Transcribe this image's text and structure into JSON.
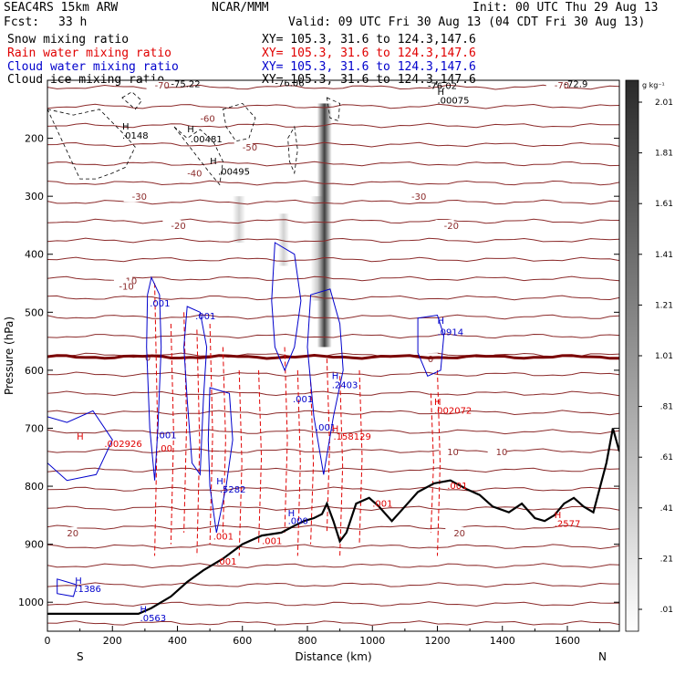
{
  "header": {
    "model": "SEAC4RS 15km ARW",
    "org": "NCAR/MMM",
    "init": "Init: 00 UTC Thu 29 Aug 13",
    "fcst_label": "Fcst:",
    "fcst_value": "33 h",
    "valid": "Valid: 09 UTC Fri 30 Aug 13 (04 CDT Fri 30 Aug 13)"
  },
  "fields": [
    {
      "name": "Snow mixing ratio",
      "xy": "XY= 105.3, 31.6 to 124.3,147.6",
      "color": "#000000"
    },
    {
      "name": "Rain water mixing ratio",
      "xy": "XY= 105.3, 31.6 to 124.3,147.6",
      "color": "#e00000"
    },
    {
      "name": "Cloud water mixing ratio",
      "xy": "XY= 105.3, 31.6 to 124.3,147.6",
      "color": "#0000cc"
    },
    {
      "name": "Cloud ice mixing ratio",
      "xy": "XY= 105.3, 31.6 to 124.3,147.6",
      "color": "#000000"
    }
  ],
  "chart_data": {
    "type": "cross-section",
    "xlabel": "Distance (km)",
    "ylabel": "Pressure (hPa)",
    "xlim": [
      0,
      1760
    ],
    "ylim": [
      1050,
      100
    ],
    "x_ticks": [
      0,
      200,
      400,
      600,
      800,
      1000,
      1200,
      1400,
      1600
    ],
    "y_ticks": [
      200,
      300,
      400,
      500,
      600,
      700,
      800,
      900,
      1000
    ],
    "x_end_labels": {
      "left": "S",
      "right": "N"
    },
    "colorbar": {
      "unit": "g kg⁻¹",
      "ticks": [
        ".01",
        ".21",
        ".41",
        ".61",
        ".81",
        "1.01",
        "1.21",
        "1.41",
        "1.61",
        "1.81",
        "2.01"
      ]
    },
    "temperature_isotherms": [
      {
        "label": "-70",
        "p": 108
      },
      {
        "label": "-60",
        "p": 165
      },
      {
        "label": "-50",
        "p": 215
      },
      {
        "label": "-40",
        "p": 260
      },
      {
        "label": "-30",
        "p": 300
      },
      {
        "label": "-20",
        "p": 350
      },
      {
        "label": "-10",
        "p": 445
      },
      {
        "label": "0",
        "p": 577
      },
      {
        "label": "10",
        "p": 740
      },
      {
        "label": "20",
        "p": 880
      }
    ],
    "ice_labels": [
      {
        "text": "-75.22",
        "x": 380,
        "p": 112
      },
      {
        "text": "-76.06",
        "x": 700,
        "p": 110
      },
      {
        "text": "-76.02",
        "x": 1170,
        "p": 115
      },
      {
        "text": "-72.9",
        "x": 1590,
        "p": 112
      },
      {
        "text": ".00075",
        "x": 1200,
        "p": 140
      },
      {
        "text": ".0148",
        "x": 230,
        "p": 201
      },
      {
        "text": ".00481",
        "x": 440,
        "p": 207
      },
      {
        "text": ".00495",
        "x": 525,
        "p": 263
      }
    ],
    "cloud_water_labels": [
      {
        "text": ".001",
        "x": 315,
        "p": 490
      },
      {
        "text": ".001",
        "x": 455,
        "p": 512
      },
      {
        "text": ".001",
        "x": 755,
        "p": 655
      },
      {
        "text": ".001",
        "x": 825,
        "p": 704
      },
      {
        "text": ".001",
        "x": 335,
        "p": 717
      },
      {
        "text": ".2403",
        "x": 875,
        "p": 631
      },
      {
        "text": ".0914",
        "x": 1200,
        "p": 540
      },
      {
        "text": ".5282",
        "x": 530,
        "p": 811
      },
      {
        "text": ".1386",
        "x": 85,
        "p": 982
      },
      {
        "text": ".0563",
        "x": 285,
        "p": 1033
      },
      {
        "text": ".000",
        "x": 740,
        "p": 865
      }
    ],
    "rain_labels": [
      {
        "text": ".002072",
        "x": 1190,
        "p": 675
      },
      {
        "text": ".158129",
        "x": 880,
        "p": 720
      },
      {
        "text": ".002926",
        "x": 175,
        "p": 732
      },
      {
        "text": ".001",
        "x": 510,
        "p": 892
      },
      {
        "text": ".001",
        "x": 520,
        "p": 935
      },
      {
        "text": ".001",
        "x": 660,
        "p": 900
      },
      {
        "text": ".001",
        "x": 1000,
        "p": 835
      },
      {
        "text": ".001",
        "x": 1230,
        "p": 805
      },
      {
        "text": ".2577",
        "x": 1560,
        "p": 870
      },
      {
        "text": ".00",
        "x": 340,
        "p": 740
      }
    ],
    "terrain": [
      [
        0,
        1020
      ],
      [
        280,
        1020
      ],
      [
        320,
        1010
      ],
      [
        380,
        990
      ],
      [
        430,
        965
      ],
      [
        480,
        945
      ],
      [
        540,
        925
      ],
      [
        600,
        900
      ],
      [
        660,
        885
      ],
      [
        720,
        880
      ],
      [
        760,
        868
      ],
      [
        790,
        860
      ],
      [
        820,
        855
      ],
      [
        845,
        848
      ],
      [
        860,
        830
      ],
      [
        880,
        860
      ],
      [
        900,
        895
      ],
      [
        920,
        880
      ],
      [
        950,
        830
      ],
      [
        990,
        820
      ],
      [
        1020,
        835
      ],
      [
        1060,
        860
      ],
      [
        1100,
        835
      ],
      [
        1140,
        810
      ],
      [
        1190,
        795
      ],
      [
        1240,
        790
      ],
      [
        1290,
        805
      ],
      [
        1330,
        815
      ],
      [
        1370,
        835
      ],
      [
        1420,
        845
      ],
      [
        1460,
        830
      ],
      [
        1500,
        855
      ],
      [
        1530,
        860
      ],
      [
        1560,
        850
      ],
      [
        1590,
        830
      ],
      [
        1620,
        820
      ],
      [
        1650,
        835
      ],
      [
        1680,
        845
      ],
      [
        1720,
        760
      ],
      [
        1740,
        700
      ],
      [
        1760,
        740
      ]
    ]
  }
}
